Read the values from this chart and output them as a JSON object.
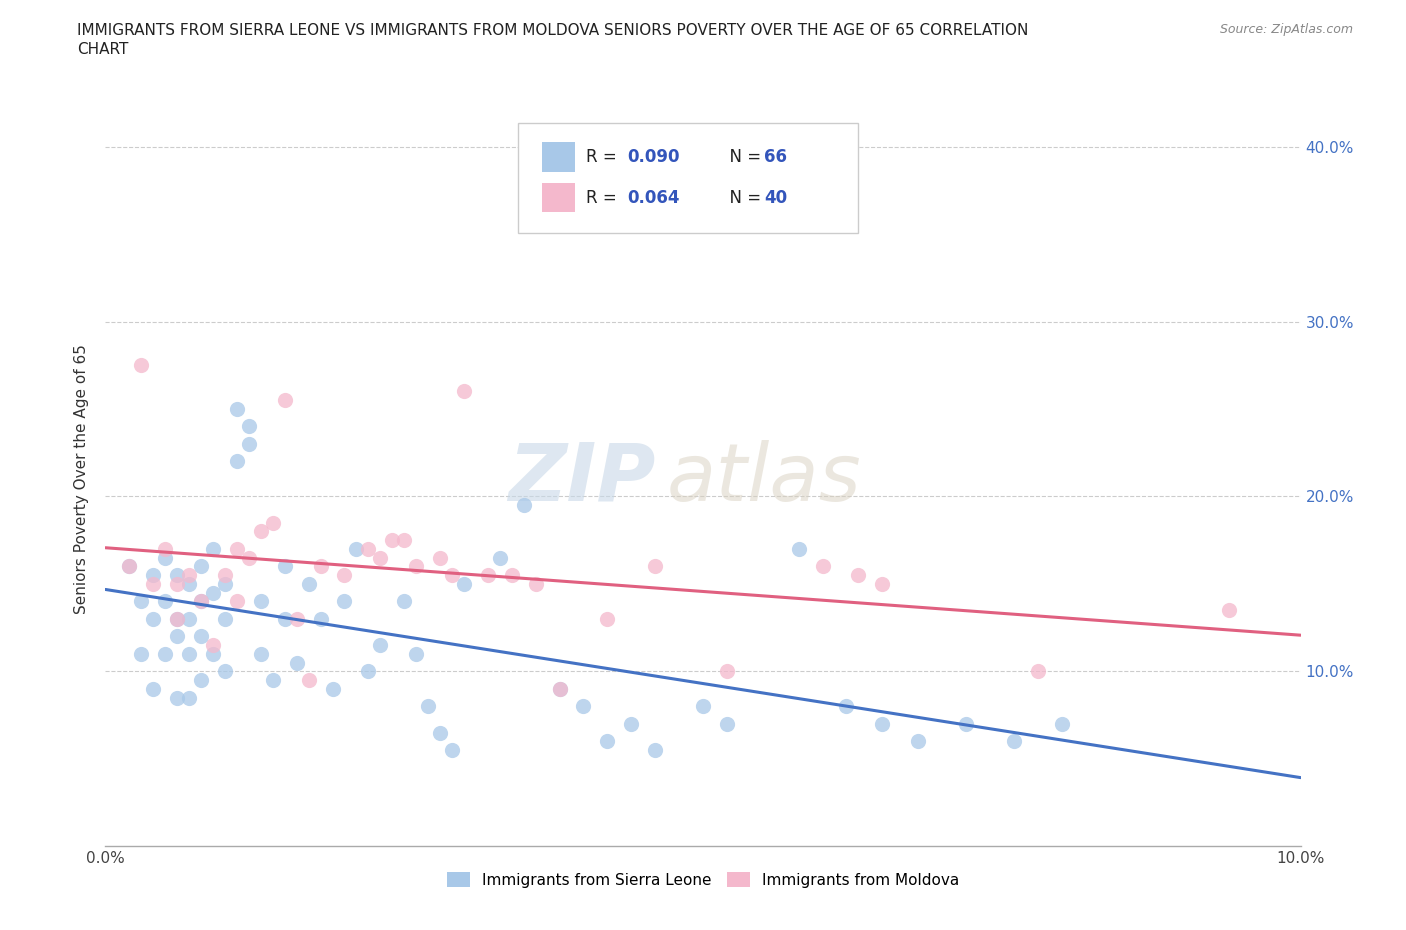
{
  "title_line1": "IMMIGRANTS FROM SIERRA LEONE VS IMMIGRANTS FROM MOLDOVA SENIORS POVERTY OVER THE AGE OF 65 CORRELATION",
  "title_line2": "CHART",
  "source_text": "Source: ZipAtlas.com",
  "ylabel_label": "Seniors Poverty Over the Age of 65",
  "xlim": [
    0.0,
    0.1
  ],
  "ylim": [
    0.0,
    0.42
  ],
  "color_sierra": "#a8c8e8",
  "color_moldova": "#f4b8cc",
  "line_color_sierra": "#4472c4",
  "line_color_moldova": "#e06080",
  "watermark_zip": "ZIP",
  "watermark_atlas": "atlas",
  "sierra_x": [
    0.002,
    0.003,
    0.003,
    0.004,
    0.004,
    0.004,
    0.005,
    0.005,
    0.005,
    0.006,
    0.006,
    0.006,
    0.006,
    0.007,
    0.007,
    0.007,
    0.007,
    0.008,
    0.008,
    0.008,
    0.008,
    0.009,
    0.009,
    0.009,
    0.01,
    0.01,
    0.01,
    0.011,
    0.011,
    0.012,
    0.012,
    0.013,
    0.013,
    0.014,
    0.015,
    0.015,
    0.016,
    0.017,
    0.018,
    0.019,
    0.02,
    0.021,
    0.022,
    0.023,
    0.025,
    0.026,
    0.027,
    0.028,
    0.029,
    0.03,
    0.033,
    0.035,
    0.038,
    0.04,
    0.042,
    0.044,
    0.046,
    0.05,
    0.052,
    0.058,
    0.062,
    0.065,
    0.068,
    0.072,
    0.076,
    0.08
  ],
  "sierra_y": [
    0.16,
    0.14,
    0.11,
    0.155,
    0.13,
    0.09,
    0.165,
    0.14,
    0.11,
    0.155,
    0.13,
    0.12,
    0.085,
    0.15,
    0.13,
    0.11,
    0.085,
    0.16,
    0.14,
    0.12,
    0.095,
    0.17,
    0.145,
    0.11,
    0.15,
    0.13,
    0.1,
    0.25,
    0.22,
    0.24,
    0.23,
    0.14,
    0.11,
    0.095,
    0.16,
    0.13,
    0.105,
    0.15,
    0.13,
    0.09,
    0.14,
    0.17,
    0.1,
    0.115,
    0.14,
    0.11,
    0.08,
    0.065,
    0.055,
    0.15,
    0.165,
    0.195,
    0.09,
    0.08,
    0.06,
    0.07,
    0.055,
    0.08,
    0.07,
    0.17,
    0.08,
    0.07,
    0.06,
    0.07,
    0.06,
    0.07
  ],
  "moldova_x": [
    0.002,
    0.003,
    0.004,
    0.005,
    0.006,
    0.006,
    0.007,
    0.008,
    0.009,
    0.01,
    0.011,
    0.011,
    0.012,
    0.013,
    0.014,
    0.015,
    0.016,
    0.017,
    0.018,
    0.02,
    0.022,
    0.023,
    0.024,
    0.025,
    0.026,
    0.028,
    0.029,
    0.03,
    0.032,
    0.034,
    0.036,
    0.038,
    0.042,
    0.046,
    0.052,
    0.06,
    0.063,
    0.065,
    0.078,
    0.094
  ],
  "moldova_y": [
    0.16,
    0.275,
    0.15,
    0.17,
    0.15,
    0.13,
    0.155,
    0.14,
    0.115,
    0.155,
    0.17,
    0.14,
    0.165,
    0.18,
    0.185,
    0.255,
    0.13,
    0.095,
    0.16,
    0.155,
    0.17,
    0.165,
    0.175,
    0.175,
    0.16,
    0.165,
    0.155,
    0.26,
    0.155,
    0.155,
    0.15,
    0.09,
    0.13,
    0.16,
    0.1,
    0.16,
    0.155,
    0.15,
    0.1,
    0.135
  ]
}
